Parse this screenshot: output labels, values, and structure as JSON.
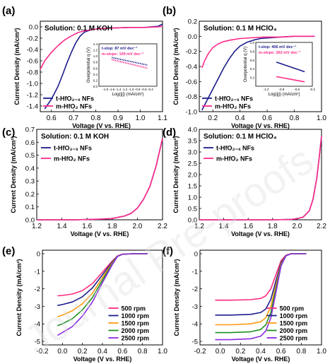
{
  "panel_colors": {
    "t_HfO2": "#1c1c8c",
    "m_HfO2": "#ff2a8a",
    "rpm_500": "#ff2b7e",
    "rpm_1000": "#1c1c8c",
    "rpm_1500": "#ff9a10",
    "rpm_2000": "#1f8f1f",
    "rpm_2500": "#8a2be2"
  },
  "watermark": "Journal Pre-proofs",
  "chart_data": [
    {
      "id": "a",
      "type": "line",
      "panel_label": "(a)",
      "annotation": "Solution: 0.1 M KOH",
      "xlabel": "Voltage (V vs. RHE)",
      "ylabel": "Current Density (mA/cm²)",
      "xlim": [
        0.55,
        1.1
      ],
      "ylim": [
        -1.5,
        0.1
      ],
      "xticks": [
        "0.6",
        "0.7",
        "0.8",
        "0.9",
        "1.0",
        "1.1"
      ],
      "yticks": [
        "-1.4",
        "-1.2",
        "-1.0",
        "-0.8",
        "-0.6",
        "-0.4",
        "-0.2",
        "0.0"
      ],
      "legend_position": "bottom-left",
      "series": [
        {
          "name": "t-HfO₂₋ₓ NFs",
          "color": "#1c1c8c",
          "x": [
            0.57,
            0.6,
            0.63,
            0.65,
            0.67,
            0.69,
            0.71,
            0.73,
            0.75,
            0.78,
            0.82,
            0.88,
            0.95,
            1.02,
            1.08,
            1.1
          ],
          "y": [
            -1.45,
            -1.28,
            -1.05,
            -0.85,
            -0.64,
            -0.45,
            -0.28,
            -0.16,
            -0.09,
            -0.05,
            -0.03,
            -0.02,
            -0.01,
            -0.01,
            0.01,
            0.05
          ]
        },
        {
          "name": "m-HfO₂ NFs",
          "color": "#ff2a8a",
          "x": [
            0.55,
            0.57,
            0.6,
            0.63,
            0.66,
            0.69,
            0.72,
            0.75,
            0.78,
            0.82,
            0.88,
            0.95,
            1.02,
            1.08,
            1.1
          ],
          "y": [
            -0.75,
            -0.6,
            -0.45,
            -0.33,
            -0.23,
            -0.16,
            -0.1,
            -0.07,
            -0.05,
            -0.03,
            -0.02,
            -0.01,
            -0.01,
            0.0,
            0.01
          ]
        }
      ],
      "inset": {
        "xlabel": "Log(|j|) (mA/cm²)",
        "ylabel": "Overpotential η (V)",
        "xlim": [
          -2.0,
          -0.2
        ],
        "ylim": [
          0.0,
          1.4
        ],
        "xticks": [
          "-1.8",
          "-1.6",
          "-1.4",
          "-1.2",
          "-1.0",
          "-0.8",
          "-0.6",
          "-0.4"
        ],
        "yticks": [
          "0.0",
          "0.2",
          "0.4",
          "0.6",
          "0.8",
          "1.0",
          "1.2",
          "1.4"
        ],
        "texts": [
          "t-slop: 87 mV dec⁻¹",
          "m-slope: 109 mV dec⁻¹"
        ],
        "series": [
          {
            "color": "#1c1c8c",
            "style": "dotted",
            "x": [
              -1.6,
              -0.5
            ],
            "y": [
              0.95,
              0.7
            ]
          },
          {
            "color": "#ff2a8a",
            "style": "dotted",
            "x": [
              -1.6,
              -0.5
            ],
            "y": [
              0.88,
              0.6
            ]
          }
        ]
      }
    },
    {
      "id": "b",
      "type": "line",
      "panel_label": "(b)",
      "annotation": "Solution: 0.1 M HClO₄",
      "xlabel": "Voltage (V vs. RHE)",
      "ylabel": "Current Density (mA/cm²)",
      "xlim": [
        0.1,
        1.0
      ],
      "ylim": [
        -1.0,
        0.2
      ],
      "xticks": [
        "0.2",
        "0.4",
        "0.6",
        "0.8",
        "1.0"
      ],
      "yticks": [
        "-1.0",
        "-0.8",
        "-0.6",
        "-0.4",
        "-0.2",
        "0.0",
        "0.2"
      ],
      "legend_position": "bottom-left",
      "series": [
        {
          "name": "t-HfO₂₋ₓ NFs",
          "color": "#1c1c8c",
          "x": [
            0.12,
            0.16,
            0.2,
            0.24,
            0.28,
            0.32,
            0.36,
            0.4,
            0.45,
            0.5,
            0.55,
            0.62,
            0.7,
            0.8,
            0.9,
            0.95
          ],
          "y": [
            -0.98,
            -0.84,
            -0.7,
            -0.56,
            -0.42,
            -0.3,
            -0.2,
            -0.13,
            -0.08,
            -0.05,
            -0.03,
            -0.02,
            -0.01,
            0.0,
            0.0,
            0.0
          ]
        },
        {
          "name": "m-HfO₂ NFs",
          "color": "#ff2a8a",
          "x": [
            0.12,
            0.14,
            0.17,
            0.2,
            0.24,
            0.28,
            0.33,
            0.4,
            0.48,
            0.58,
            0.7,
            0.8,
            0.9,
            0.95
          ],
          "y": [
            -0.42,
            -0.32,
            -0.22,
            -0.15,
            -0.1,
            -0.07,
            -0.05,
            -0.03,
            -0.02,
            -0.01,
            -0.01,
            0.0,
            0.0,
            0.0
          ]
        }
      ],
      "inset": {
        "xlabel": "Log(|j|) (mA/cm²)",
        "ylabel": "Overpotential η (V)",
        "xlim": [
          -1.4,
          -0.3
        ],
        "ylim": [
          0.0,
          1.0
        ],
        "xticks": [
          "-1.2",
          "-0.9",
          "-0.6",
          "-0.3"
        ],
        "yticks": [
          "0.2",
          "0.4",
          "0.6",
          "0.8",
          "1.0"
        ],
        "texts": [
          "t-slop: 406 mV dec⁻¹",
          "m-slope: 262 mV dec⁻¹"
        ],
        "series": [
          {
            "color": "#1c1c8c",
            "style": "solid",
            "x": [
              -1.0,
              -0.45
            ],
            "y": [
              0.55,
              0.33
            ]
          },
          {
            "color": "#ff2a8a",
            "style": "solid",
            "x": [
              -1.0,
              -0.45
            ],
            "y": [
              0.22,
              0.1
            ]
          }
        ]
      }
    },
    {
      "id": "c",
      "type": "line",
      "panel_label": "(c)",
      "annotation": "Solution: 0.1 M KOH",
      "xlabel": "Voltage (V vs. RHE)",
      "ylabel": "Current Density (mA/cm²)",
      "xlim": [
        1.2,
        2.2
      ],
      "ylim": [
        0.0,
        0.7
      ],
      "xticks": [
        "1.2",
        "1.4",
        "1.6",
        "1.8",
        "2.0",
        "2.2"
      ],
      "yticks": [
        "0.0",
        "0.1",
        "0.2",
        "0.3",
        "0.4",
        "0.5",
        "0.6",
        "0.7"
      ],
      "legend_position": "top-left",
      "series": [
        {
          "name": "t-HfO₂₋ₓ NFs",
          "color": "#1c1c8c",
          "x": [
            1.2,
            1.5,
            1.7,
            1.8,
            1.9,
            1.95,
            2.0,
            2.05,
            2.1,
            2.15,
            2.2
          ],
          "y": [
            0.0,
            0.0,
            0.005,
            0.01,
            0.03,
            0.05,
            0.09,
            0.16,
            0.26,
            0.42,
            0.63
          ]
        },
        {
          "name": "m-HfO₂ NFs",
          "color": "#ff2a8a",
          "x": [
            1.2,
            1.5,
            1.7,
            1.8,
            1.9,
            1.95,
            2.0,
            2.05,
            2.1,
            2.15,
            2.2
          ],
          "y": [
            0.0,
            0.0,
            0.005,
            0.01,
            0.03,
            0.05,
            0.09,
            0.16,
            0.26,
            0.42,
            0.63
          ]
        }
      ]
    },
    {
      "id": "d",
      "type": "line",
      "panel_label": "(d)",
      "annotation": "Solution: 0.1 M HClO₄",
      "xlabel": "Voltage (V vs. RHE)",
      "ylabel": "Current Density (mA/cm²)",
      "xlim": [
        1.2,
        2.2
      ],
      "ylim": [
        0.0,
        4.0
      ],
      "xticks": [
        "1.2",
        "1.4",
        "1.6",
        "1.8",
        "2.0",
        "2.2"
      ],
      "yticks": [
        "0.0",
        "0.5",
        "1.0",
        "1.5",
        "2.0",
        "2.5",
        "3.0",
        "3.5",
        "4.0"
      ],
      "legend_position": "top-left",
      "series": [
        {
          "name": "t-HfO₂₋ₓ NFs",
          "color": "#1c1c8c",
          "x": [
            1.2,
            1.8,
            1.95,
            2.0,
            2.05,
            2.1,
            2.13,
            2.16,
            2.18,
            2.2
          ],
          "y": [
            0.0,
            0.0,
            0.02,
            0.05,
            0.12,
            0.4,
            0.9,
            1.8,
            2.7,
            3.7
          ]
        },
        {
          "name": "m-HfO₂ NFs",
          "color": "#ff2a8a",
          "x": [
            1.2,
            1.8,
            1.95,
            2.0,
            2.05,
            2.1,
            2.13,
            2.16,
            2.18,
            2.2
          ],
          "y": [
            0.0,
            0.0,
            0.02,
            0.05,
            0.12,
            0.4,
            0.9,
            1.8,
            2.7,
            3.7
          ]
        }
      ]
    },
    {
      "id": "e",
      "type": "line",
      "panel_label": "(e)",
      "xlabel": "Voltage (V vs. RHE)",
      "ylabel": "Current Density (mA/cm²)",
      "xlim": [
        -0.2,
        1.0
      ],
      "ylim": [
        -5.2,
        0.2
      ],
      "xticks": [
        "-0.2",
        "0.0",
        "0.2",
        "0.4",
        "0.6",
        "0.8",
        "1.0"
      ],
      "yticks": [
        "0",
        "-1",
        "-2",
        "-3",
        "-4",
        "-5"
      ],
      "legend_position": "bottom-right",
      "series": [
        {
          "name": "500 rpm",
          "color": "#ff2b7e",
          "x": [
            -0.05,
            0.0,
            0.1,
            0.2,
            0.3,
            0.4,
            0.5,
            0.55,
            0.6,
            0.7,
            0.85
          ],
          "y": [
            -2.4,
            -2.38,
            -2.3,
            -2.1,
            -1.7,
            -1.05,
            -0.4,
            -0.12,
            -0.03,
            0.0,
            0.0
          ]
        },
        {
          "name": "1000 rpm",
          "color": "#1c1c8c",
          "x": [
            -0.05,
            0.0,
            0.1,
            0.2,
            0.3,
            0.4,
            0.5,
            0.55,
            0.6,
            0.7,
            0.85
          ],
          "y": [
            -2.95,
            -2.9,
            -2.75,
            -2.45,
            -1.95,
            -1.2,
            -0.45,
            -0.13,
            -0.03,
            0.0,
            0.0
          ]
        },
        {
          "name": "1500 rpm",
          "color": "#ff9a10",
          "x": [
            -0.05,
            0.0,
            0.1,
            0.2,
            0.3,
            0.4,
            0.5,
            0.55,
            0.6,
            0.7,
            0.85
          ],
          "y": [
            -3.6,
            -3.5,
            -3.25,
            -2.85,
            -2.25,
            -1.35,
            -0.5,
            -0.14,
            -0.03,
            0.0,
            0.0
          ]
        },
        {
          "name": "2000 rpm",
          "color": "#1f8f1f",
          "x": [
            -0.05,
            0.0,
            0.1,
            0.2,
            0.3,
            0.4,
            0.5,
            0.55,
            0.6,
            0.7,
            0.85
          ],
          "y": [
            -4.1,
            -4.0,
            -3.7,
            -3.2,
            -2.5,
            -1.5,
            -0.55,
            -0.15,
            -0.03,
            0.0,
            0.0
          ]
        },
        {
          "name": "2500 rpm",
          "color": "#8a2be2",
          "x": [
            -0.05,
            0.0,
            0.1,
            0.2,
            0.3,
            0.4,
            0.5,
            0.55,
            0.6,
            0.7,
            0.85
          ],
          "y": [
            -4.65,
            -4.5,
            -4.15,
            -3.55,
            -2.75,
            -1.65,
            -0.6,
            -0.16,
            -0.03,
            0.0,
            0.0
          ]
        }
      ]
    },
    {
      "id": "f",
      "type": "line",
      "panel_label": "(f)",
      "xlabel": "Voltage (V vs. RHE)",
      "ylabel": "Current Density (mA/cm²)",
      "xlim": [
        -0.2,
        1.0
      ],
      "ylim": [
        -5.2,
        0.2
      ],
      "xticks": [
        "-0.2",
        "0.0",
        "0.2",
        "0.4",
        "0.6",
        "0.8",
        "1.0"
      ],
      "yticks": [
        "0",
        "-1",
        "-2",
        "-3",
        "-4",
        "-5"
      ],
      "legend_position": "bottom-right",
      "series": [
        {
          "name": "500 rpm",
          "color": "#ff2b7e",
          "x": [
            -0.05,
            0.1,
            0.3,
            0.4,
            0.45,
            0.5,
            0.55,
            0.6,
            0.65,
            0.7,
            0.85
          ],
          "y": [
            -2.65,
            -2.65,
            -2.62,
            -2.55,
            -2.4,
            -2.0,
            -1.2,
            -0.4,
            -0.08,
            0.0,
            0.0
          ]
        },
        {
          "name": "1000 rpm",
          "color": "#1c1c8c",
          "x": [
            -0.05,
            0.1,
            0.3,
            0.4,
            0.45,
            0.5,
            0.55,
            0.6,
            0.65,
            0.7,
            0.85
          ],
          "y": [
            -3.5,
            -3.5,
            -3.46,
            -3.35,
            -3.15,
            -2.6,
            -1.55,
            -0.5,
            -0.09,
            0.0,
            0.0
          ]
        },
        {
          "name": "1500 rpm",
          "color": "#ff9a10",
          "x": [
            -0.05,
            0.1,
            0.3,
            0.4,
            0.45,
            0.5,
            0.55,
            0.6,
            0.65,
            0.7,
            0.85
          ],
          "y": [
            -4.05,
            -4.05,
            -4.0,
            -3.88,
            -3.65,
            -3.0,
            -1.8,
            -0.58,
            -0.1,
            0.0,
            0.0
          ]
        },
        {
          "name": "2000 rpm",
          "color": "#1f8f1f",
          "x": [
            -0.05,
            0.1,
            0.3,
            0.4,
            0.45,
            0.5,
            0.55,
            0.6,
            0.65,
            0.7,
            0.85
          ],
          "y": [
            -4.5,
            -4.5,
            -4.45,
            -4.32,
            -4.05,
            -3.35,
            -2.0,
            -0.65,
            -0.11,
            0.0,
            0.0
          ]
        },
        {
          "name": "2500 rpm",
          "color": "#8a2be2",
          "x": [
            -0.05,
            0.1,
            0.3,
            0.4,
            0.45,
            0.5,
            0.55,
            0.6,
            0.65,
            0.7,
            0.85
          ],
          "y": [
            -4.9,
            -4.9,
            -4.85,
            -4.7,
            -4.4,
            -3.65,
            -2.2,
            -0.7,
            -0.12,
            0.0,
            0.0
          ]
        }
      ]
    }
  ]
}
